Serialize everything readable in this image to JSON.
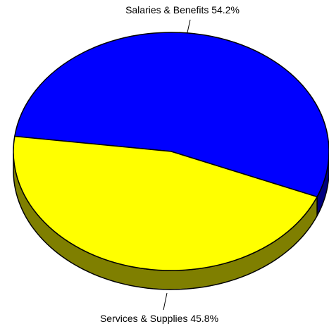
{
  "chart_data": {
    "type": "pie",
    "style": "3d",
    "title": "",
    "slices": [
      {
        "label": "Salaries & Benefits",
        "value": 54.2,
        "pct_text": "54.2%",
        "color": "#0000FF",
        "side_color": "#00007F"
      },
      {
        "label": "Services & Supplies",
        "value": 45.8,
        "pct_text": "45.8%",
        "color": "#FFFF00",
        "side_color": "#7F7F00"
      }
    ],
    "legend": "none"
  }
}
